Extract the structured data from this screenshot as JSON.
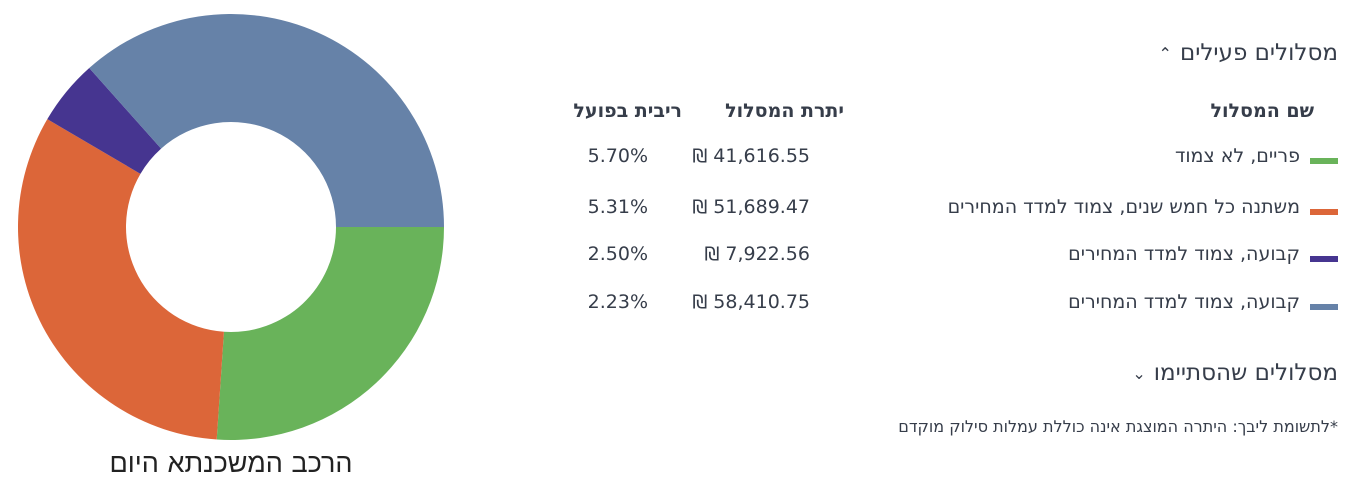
{
  "chart_data": {
    "type": "pie",
    "variant": "donut",
    "title": "הרכב המשכנתא היום",
    "categories": [
      "פריים, לא צמוד",
      "משתנה כל חמש שנים, צמוד למדד המחירים",
      "קבועה, צמוד למדד המחירים",
      "קבועה, צמוד למדד המחירים"
    ],
    "values": [
      41616.55,
      51689.47,
      7922.56,
      58410.75
    ],
    "colors": [
      "#69b35a",
      "#dc6639",
      "#463590",
      "#6682a8"
    ],
    "start_angle": "3 o'clock, clockwise",
    "legend": "table to the right"
  },
  "active_tracks": {
    "title": "מסלולים פעילים",
    "chevron": "chevron-up-icon",
    "columns": {
      "name": "שם המסלול",
      "balance": "יתרת המסלול",
      "rate": "ריבית בפועל"
    },
    "rows": [
      {
        "name": "פריים, לא צמוד",
        "balance": "₪ 41,616.55",
        "rate": "5.70%",
        "color": "#69b35a"
      },
      {
        "name": "משתנה כל חמש שנים, צמוד למדד המחירים",
        "balance": "₪ 51,689.47",
        "rate": "5.31%",
        "color": "#dc6639"
      },
      {
        "name": "קבועה, צמוד למדד המחירים",
        "balance": "₪ 7,922.56",
        "rate": "2.50%",
        "color": "#463590"
      },
      {
        "name": "קבועה, צמוד למדד המחירים",
        "balance": "₪ 58,410.75",
        "rate": "2.23%",
        "color": "#6682a8"
      }
    ]
  },
  "completed_tracks": {
    "title": "מסלולים שהסתיימו",
    "chevron": "chevron-down-icon"
  },
  "note": "*לתשומת ליבך: היתרה המוצגת אינה כוללת עמלות סילוק מוקדם"
}
